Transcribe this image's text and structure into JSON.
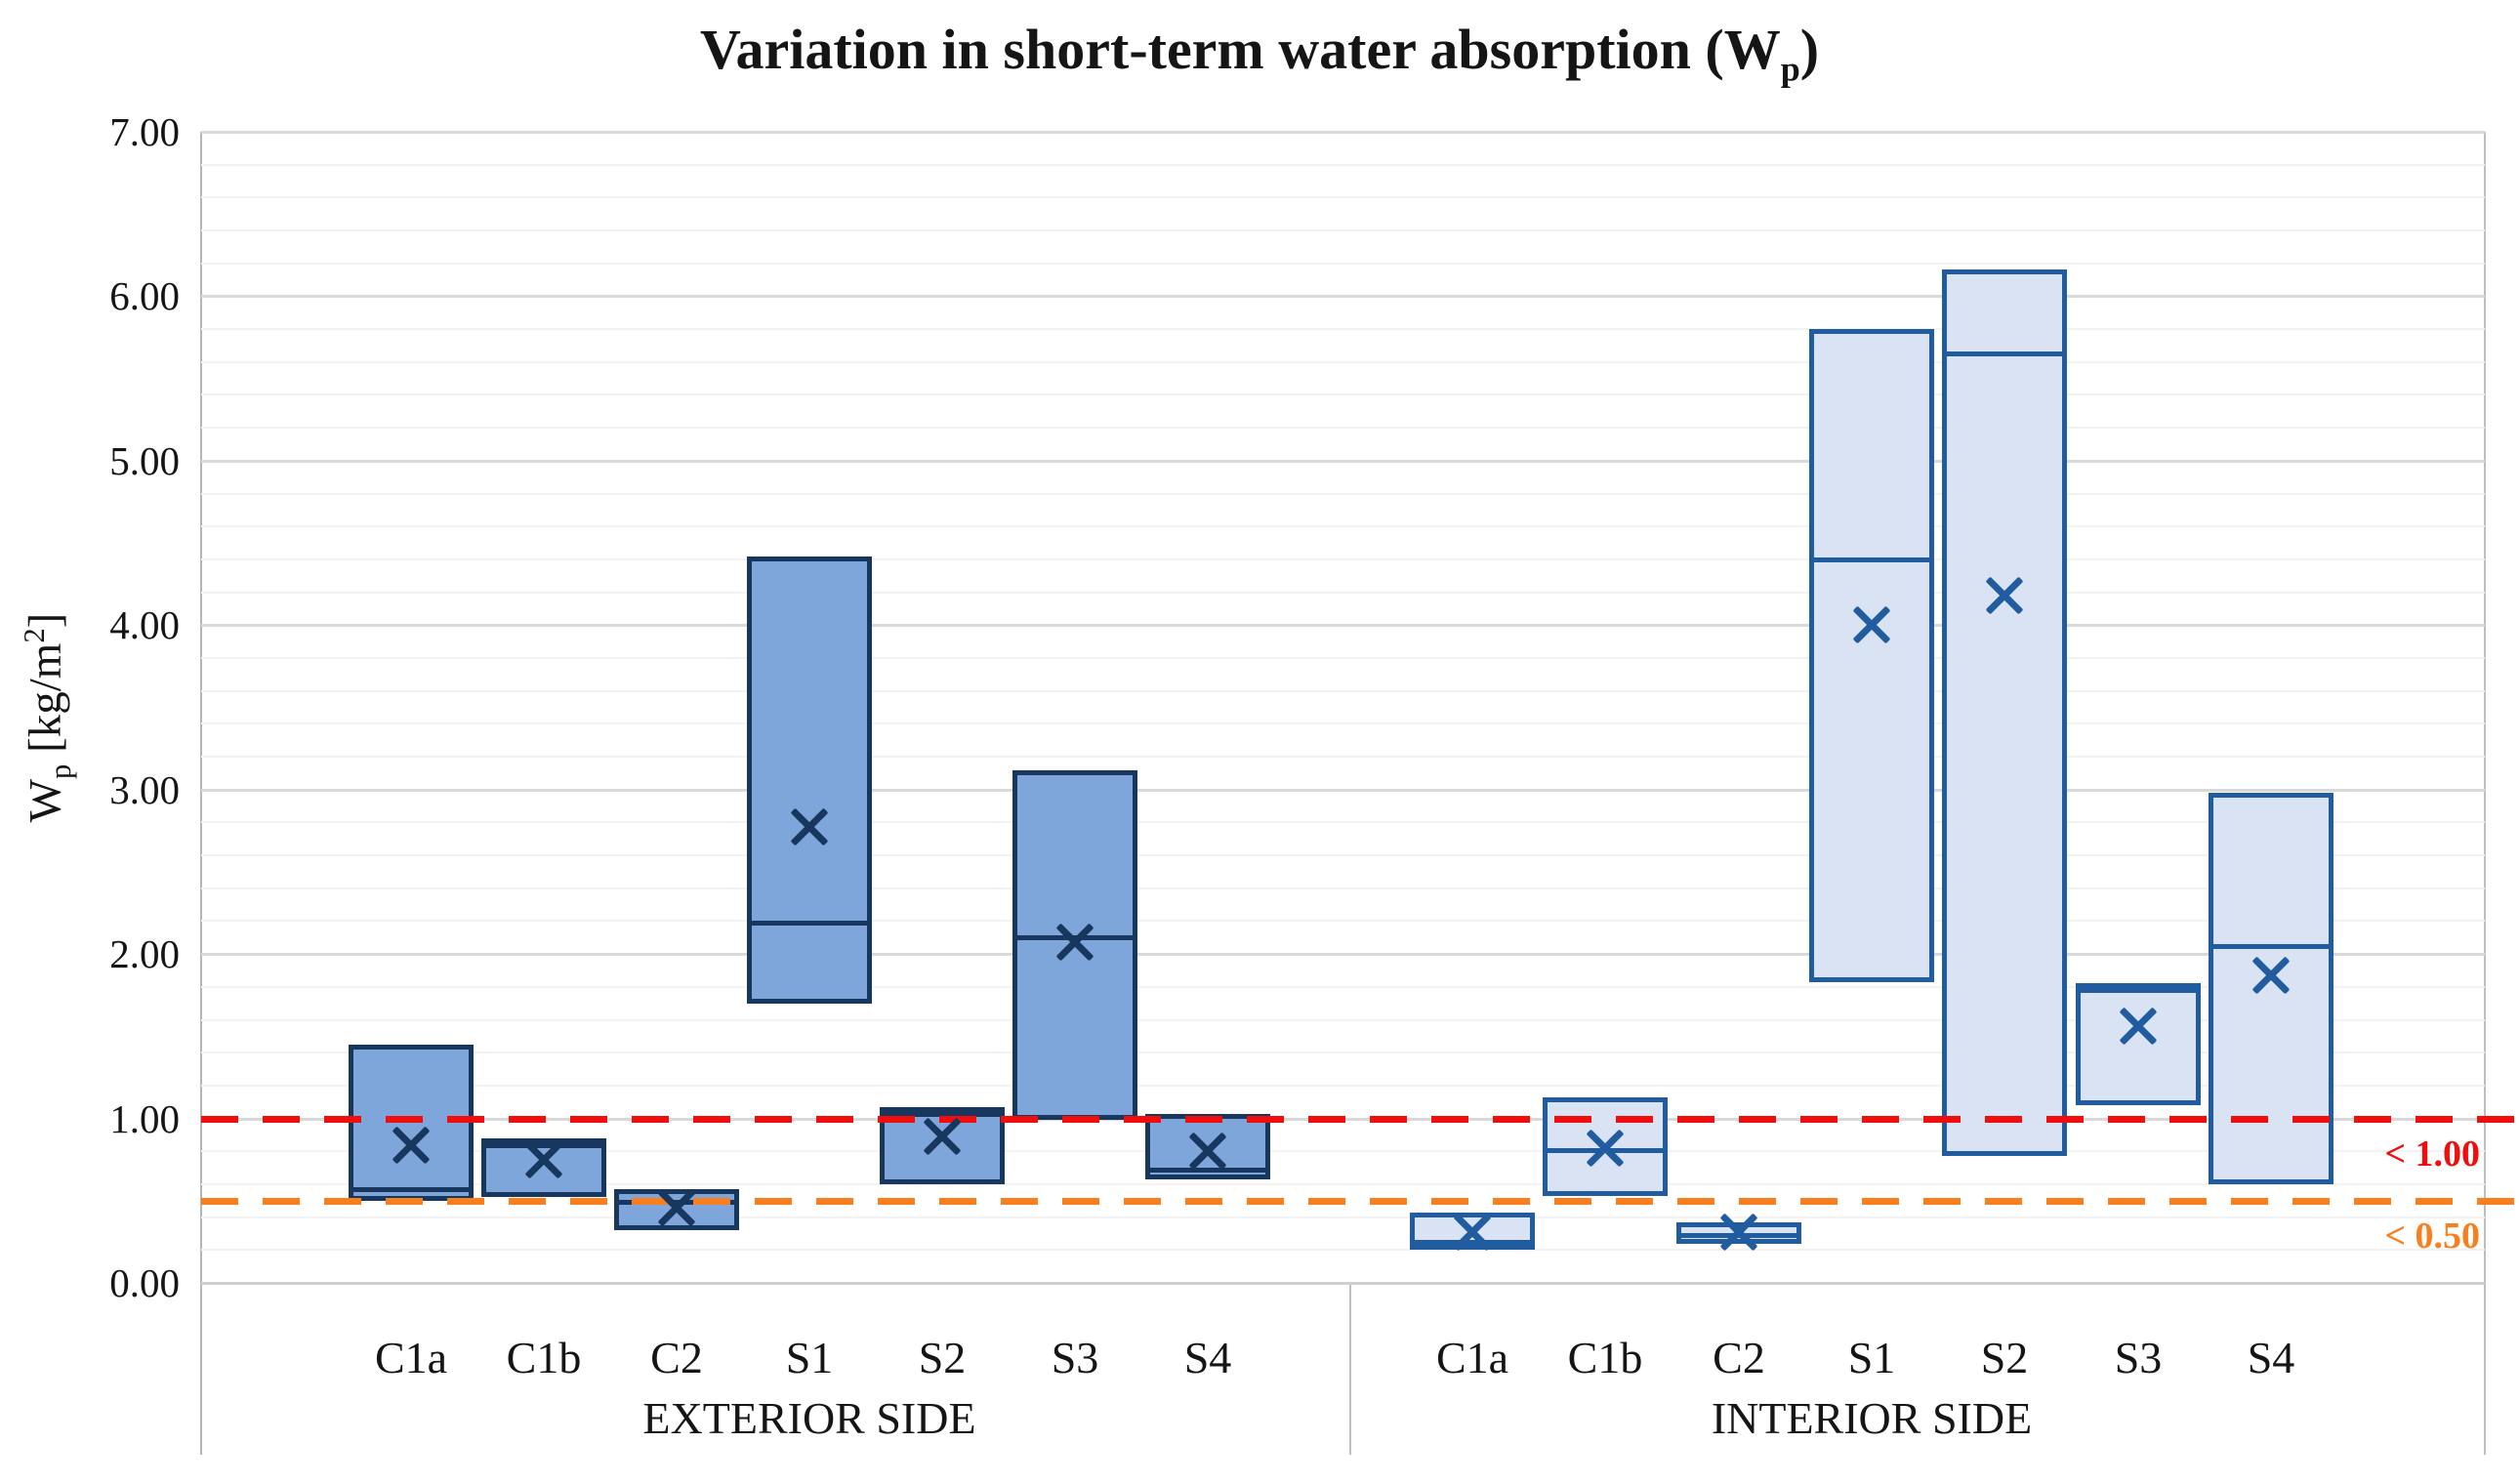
{
  "title": {
    "prefix": "Variation in short-term water absorption (W",
    "sub": "p",
    "suffix": ")"
  },
  "y_axis": {
    "prefix": "W",
    "sub": "p",
    "mid": " [kg/m",
    "sup": "2",
    "suffix": "]",
    "ticks": [
      "7.00",
      "6.00",
      "5.00",
      "4.00",
      "3.00",
      "2.00",
      "1.00",
      "0.00"
    ]
  },
  "colors": {
    "exterior_fill": "#7EA6DA",
    "exterior_border": "#17375E",
    "interior_fill": "#DAE3F3",
    "interior_border": "#215CA0",
    "reference_red": "#F20D0D",
    "reference_orange": "#F87E1E",
    "major_grid": "#D9D9D9",
    "minor_grid": "#F2F2F2",
    "axis_line": "#BFBFBF"
  },
  "chart_data": {
    "type": "box",
    "title": "Variation in short-term water absorption (Wp)",
    "ylabel": "Wp [kg/m2]",
    "ylim": [
      0,
      7
    ],
    "ytick_step": 1.0,
    "minor_grid_step": 0.2,
    "grid": true,
    "legend": false,
    "reference_lines": [
      {
        "value": 1.0,
        "label": "< 1.00",
        "color_key": "reference_red"
      },
      {
        "value": 0.5,
        "label": "< 0.50",
        "color_key": "reference_orange"
      }
    ],
    "groups": [
      {
        "label": "EXTERIOR SIDE",
        "style": "exterior",
        "categories": [
          "C1a",
          "C1b",
          "C2",
          "S1",
          "S2",
          "S3",
          "S4"
        ],
        "boxes": [
          {
            "min": 0.5,
            "max": 1.45,
            "median": 0.57,
            "mean": 0.84
          },
          {
            "min": 0.52,
            "max": 0.88,
            "median": 0.84,
            "mean": 0.75
          },
          {
            "min": 0.32,
            "max": 0.57,
            "median": 0.49,
            "mean": 0.46
          },
          {
            "min": 1.7,
            "max": 4.42,
            "median": 2.19,
            "mean": 2.77
          },
          {
            "min": 0.6,
            "max": 1.07,
            "median": 1.03,
            "mean": 0.89
          },
          {
            "min": 0.99,
            "max": 3.12,
            "median": 2.1,
            "mean": 2.07
          },
          {
            "min": 0.63,
            "max": 1.03,
            "median": 0.69,
            "mean": 0.8
          }
        ]
      },
      {
        "label": "INTERIOR SIDE",
        "style": "interior",
        "categories": [
          "C1a",
          "C1b",
          "C2",
          "S1",
          "S2",
          "S3",
          "S4"
        ],
        "boxes": [
          {
            "min": 0.2,
            "max": 0.43,
            "median": 0.25,
            "mean": 0.31
          },
          {
            "min": 0.53,
            "max": 1.13,
            "median": 0.81,
            "mean": 0.82
          },
          {
            "min": 0.24,
            "max": 0.37,
            "median": 0.29,
            "mean": 0.31
          },
          {
            "min": 1.83,
            "max": 5.8,
            "median": 4.4,
            "mean": 4.0
          },
          {
            "min": 0.77,
            "max": 6.16,
            "median": 5.65,
            "mean": 4.18
          },
          {
            "min": 1.08,
            "max": 1.82,
            "median": 1.78,
            "mean": 1.56
          },
          {
            "min": 0.6,
            "max": 2.98,
            "median": 2.05,
            "mean": 1.87
          }
        ]
      }
    ]
  }
}
